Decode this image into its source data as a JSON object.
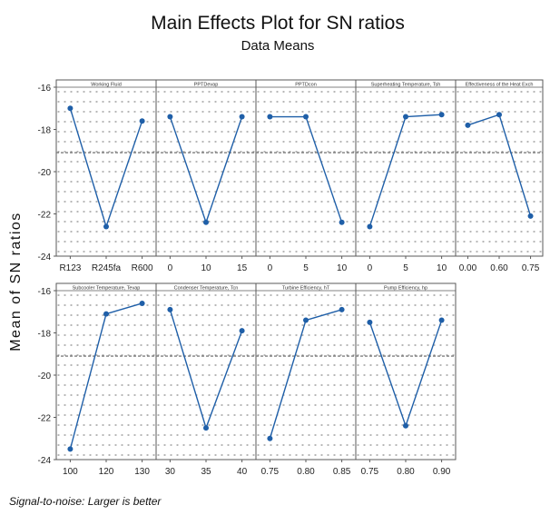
{
  "chart_data": {
    "type": "line",
    "title": "Main Effects Plot for SN ratios",
    "subtitle": "Data Means",
    "ylabel": "Mean of SN ratios",
    "footnote": "Signal-to-noise: Larger is better",
    "ylim": [
      -24,
      -16
    ],
    "yticks": [
      "-16",
      "-18",
      "-20",
      "-22",
      "-24"
    ],
    "mean_line": -19.1,
    "colors": {
      "line": "#1f5fa8",
      "reference": "#7f7f7f",
      "panel_border": "#5a5a5a",
      "dots": "#8a8a8a"
    },
    "panels": [
      {
        "label": "Working Fluid",
        "categories": [
          "R123",
          "R245fa",
          "R600"
        ],
        "values": [
          -17.0,
          -22.6,
          -17.6
        ]
      },
      {
        "label": "PPTDevap",
        "categories": [
          "0",
          "10",
          "15"
        ],
        "values": [
          -17.4,
          -22.4,
          -17.4
        ]
      },
      {
        "label": "PPTDcon",
        "categories": [
          "0",
          "5",
          "10"
        ],
        "values": [
          -17.4,
          -17.4,
          -22.4
        ]
      },
      {
        "label": "Superheating Temperature, Tsh",
        "categories": [
          "0",
          "5",
          "10"
        ],
        "values": [
          -22.6,
          -17.4,
          -17.3
        ]
      },
      {
        "label": "Effectiveness of the Heat Exch",
        "categories": [
          "0.00",
          "0.60",
          "0.75"
        ],
        "values": [
          -17.8,
          -17.3,
          -22.1
        ]
      },
      {
        "label": "Subcooler Temperature, Tevap",
        "categories": [
          "100",
          "120",
          "130"
        ],
        "values": [
          -23.5,
          -17.1,
          -16.6
        ]
      },
      {
        "label": "Condenser Temperature, Tcn",
        "categories": [
          "30",
          "35",
          "40"
        ],
        "values": [
          -16.9,
          -22.5,
          -17.9
        ]
      },
      {
        "label": "Turbine Efficiency, hT",
        "categories": [
          "0.75",
          "0.80",
          "0.85"
        ],
        "values": [
          -23.0,
          -17.4,
          -16.9
        ]
      },
      {
        "label": "Pump Efficiency, hp",
        "categories": [
          "0.75",
          "0.80",
          "0.90"
        ],
        "values": [
          -17.5,
          -22.4,
          -17.4
        ]
      }
    ]
  }
}
